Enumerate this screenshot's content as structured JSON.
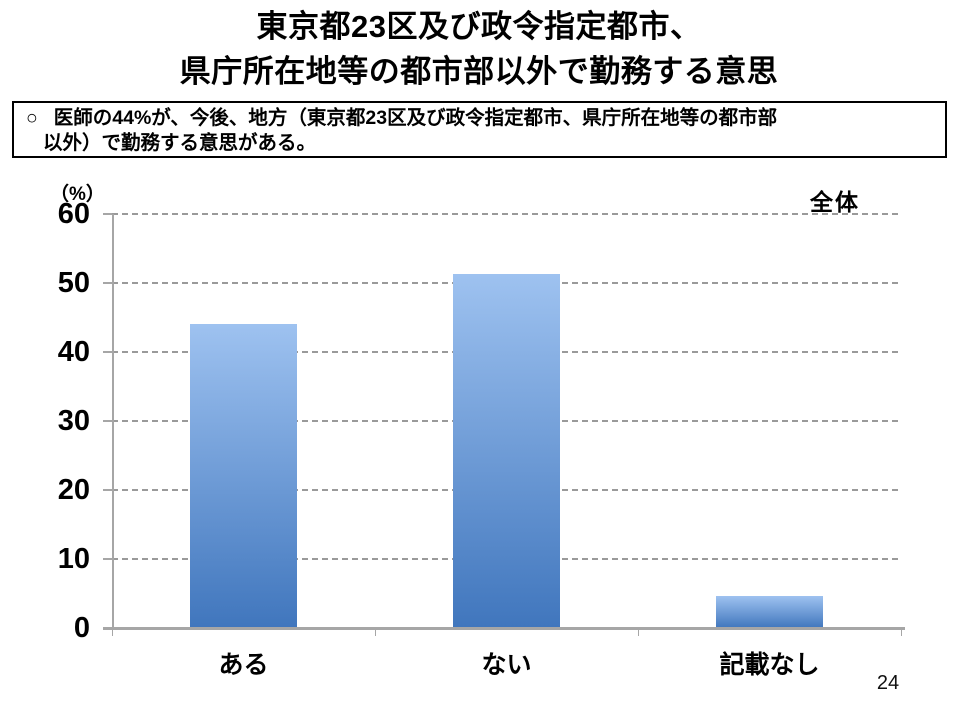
{
  "page": {
    "title_line1": "東京都23区及び政令指定都市、",
    "title_line2": "県庁所在地等の都市部以外で勤務する意思",
    "page_number": "24"
  },
  "callout": {
    "bullet": "○",
    "line1": "医師の44%が、今後、地方（東京都23区及び政令指定都市、県庁所在地等の都市部",
    "line2": "以外）で勤務する意思がある。"
  },
  "chart_data": {
    "type": "bar",
    "title": "全体",
    "unit_label": "（%）",
    "categories": [
      "ある",
      "ない",
      "記載なし"
    ],
    "values": [
      44.1,
      51.3,
      4.6
    ],
    "ylim": [
      0,
      60
    ],
    "ytick_step": 10,
    "grid": true,
    "grid_style": "dashed",
    "legend_position": "top-right",
    "colors": {
      "bar_gradient_top": "#9EC2F0",
      "bar_gradient_bottom": "#4076BD",
      "axis": "#A6A6A6",
      "gridline": "#9A9A9A",
      "text": "#000000"
    }
  }
}
